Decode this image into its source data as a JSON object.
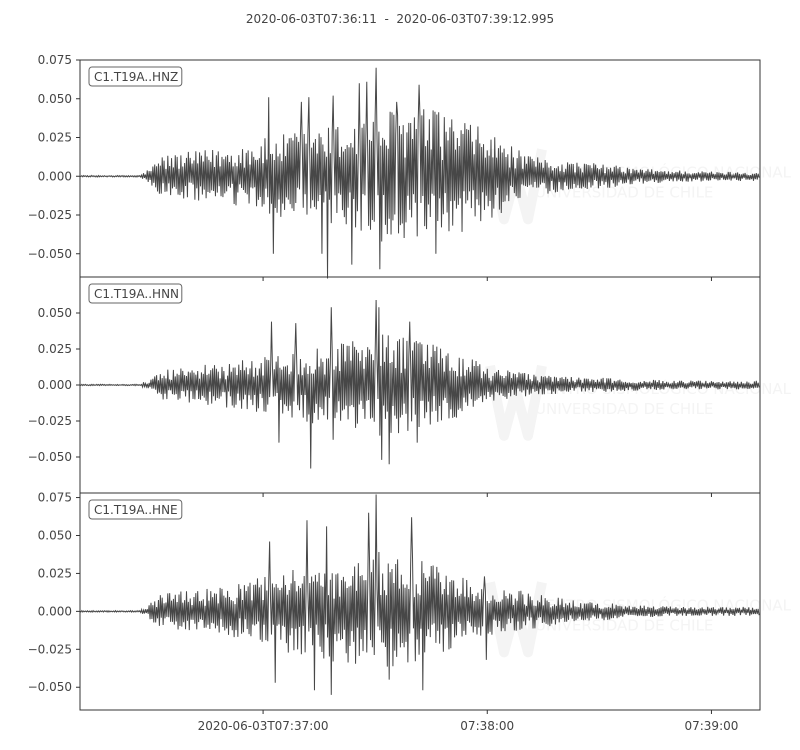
{
  "title": "2020-06-03T07:36:11  -  2020-06-03T07:39:12.995",
  "watermark": {
    "line1": "CENTRO SISMOLÓGICO NACIONAL",
    "line2": "UNIVERSIDAD DE CHILE"
  },
  "colors": {
    "trace": "#474747",
    "frame": "#333333",
    "text": "#444444",
    "watermark": "#f4f4f4"
  },
  "chart_data": [
    {
      "type": "line",
      "label": "C1.T19A..HNZ",
      "xlim": [
        "2020-06-03T07:36:11",
        "2020-06-03T07:39:12.995"
      ],
      "x_ticks": [
        "2020-06-03T07:37:00",
        "07:38:00",
        "07:39:00"
      ],
      "y_ticks": [
        0.075,
        0.05,
        0.025,
        0.0,
        -0.025,
        -0.05
      ],
      "y_tick_labels": [
        "0.075",
        "0.050",
        "0.025",
        "0.000",
        "−0.025",
        "−0.050"
      ],
      "ylim": [
        -0.065,
        0.075
      ],
      "envelope": {
        "t": [
          0,
          16,
          19,
          22,
          30,
          40,
          50,
          60,
          70,
          80,
          90,
          100,
          110,
          120,
          130,
          140,
          150,
          160,
          170,
          182
        ],
        "amp": [
          0.0005,
          0.0005,
          0.006,
          0.014,
          0.016,
          0.019,
          0.025,
          0.03,
          0.034,
          0.042,
          0.046,
          0.04,
          0.028,
          0.013,
          0.01,
          0.008,
          0.005,
          0.004,
          0.003,
          0.003
        ]
      },
      "peaks": [
        {
          "t": 50.5,
          "v": 0.051
        },
        {
          "t": 51.8,
          "v": -0.05
        },
        {
          "t": 59.2,
          "v": 0.048
        },
        {
          "t": 61.2,
          "v": 0.051
        },
        {
          "t": 64.8,
          "v": -0.05
        },
        {
          "t": 66.2,
          "v": -0.066
        },
        {
          "t": 67.8,
          "v": 0.052
        },
        {
          "t": 72.8,
          "v": -0.057
        },
        {
          "t": 74.8,
          "v": 0.06
        },
        {
          "t": 76.8,
          "v": 0.061
        },
        {
          "t": 79.3,
          "v": 0.07
        },
        {
          "t": 80.2,
          "v": -0.06
        },
        {
          "t": 84.8,
          "v": 0.048
        },
        {
          "t": 90.8,
          "v": 0.059
        },
        {
          "t": 95.2,
          "v": -0.05
        }
      ]
    },
    {
      "type": "line",
      "label": "C1.T19A..HNN",
      "xlim": [
        "2020-06-03T07:36:11",
        "2020-06-03T07:39:12.995"
      ],
      "x_ticks": [
        "2020-06-03T07:37:00",
        "07:38:00",
        "07:39:00"
      ],
      "y_ticks": [
        0.05,
        0.025,
        0.0,
        -0.025,
        -0.05
      ],
      "y_tick_labels": [
        "0.050",
        "0.025",
        "0.000",
        "−0.025",
        "−0.050"
      ],
      "ylim": [
        -0.075,
        0.075
      ],
      "envelope": {
        "t": [
          0,
          16,
          19,
          22,
          30,
          40,
          50,
          60,
          70,
          80,
          90,
          100,
          110,
          120,
          130,
          140,
          150,
          160,
          170,
          182
        ],
        "amp": [
          0.0005,
          0.0005,
          0.005,
          0.011,
          0.013,
          0.016,
          0.02,
          0.026,
          0.03,
          0.036,
          0.032,
          0.024,
          0.012,
          0.008,
          0.006,
          0.005,
          0.004,
          0.003,
          0.003,
          0.003
        ]
      },
      "peaks": [
        {
          "t": 51.2,
          "v": 0.044
        },
        {
          "t": 53.2,
          "v": -0.04
        },
        {
          "t": 57.8,
          "v": 0.043
        },
        {
          "t": 61.8,
          "v": -0.058
        },
        {
          "t": 67.2,
          "v": 0.054
        },
        {
          "t": 67.8,
          "v": -0.038
        },
        {
          "t": 79.2,
          "v": 0.059
        },
        {
          "t": 80.0,
          "v": 0.054
        },
        {
          "t": 80.8,
          "v": -0.052
        },
        {
          "t": 82.8,
          "v": -0.055
        },
        {
          "t": 88.2,
          "v": 0.044
        },
        {
          "t": 90.2,
          "v": -0.04
        }
      ]
    },
    {
      "type": "line",
      "label": "C1.T19A..HNE",
      "xlim": [
        "2020-06-03T07:36:11",
        "2020-06-03T07:39:12.995"
      ],
      "x_ticks": [
        "2020-06-03T07:37:00",
        "07:38:00",
        "07:39:00"
      ],
      "y_ticks": [
        0.075,
        0.05,
        0.025,
        0.0,
        -0.025,
        -0.05
      ],
      "y_tick_labels": [
        "0.075",
        "0.050",
        "0.025",
        "0.000",
        "−0.025",
        "−0.050"
      ],
      "ylim": [
        -0.065,
        0.078
      ],
      "envelope": {
        "t": [
          0,
          16,
          19,
          22,
          30,
          40,
          50,
          60,
          70,
          80,
          90,
          100,
          110,
          120,
          130,
          140,
          150,
          160,
          170,
          182
        ],
        "amp": [
          0.0005,
          0.0005,
          0.006,
          0.012,
          0.014,
          0.016,
          0.024,
          0.03,
          0.034,
          0.04,
          0.036,
          0.024,
          0.017,
          0.013,
          0.008,
          0.006,
          0.004,
          0.003,
          0.003,
          0.003
        ]
      },
      "peaks": [
        {
          "t": 50.8,
          "v": 0.046
        },
        {
          "t": 52.2,
          "v": -0.047
        },
        {
          "t": 60.8,
          "v": 0.06
        },
        {
          "t": 62.8,
          "v": -0.052
        },
        {
          "t": 66.0,
          "v": 0.056
        },
        {
          "t": 67.2,
          "v": -0.055
        },
        {
          "t": 77.2,
          "v": 0.065
        },
        {
          "t": 79.2,
          "v": 0.077
        },
        {
          "t": 82.8,
          "v": -0.045
        },
        {
          "t": 88.8,
          "v": 0.062
        },
        {
          "t": 91.8,
          "v": -0.052
        },
        {
          "t": 108.2,
          "v": 0.023
        },
        {
          "t": 108.8,
          "v": -0.032
        }
      ]
    }
  ]
}
